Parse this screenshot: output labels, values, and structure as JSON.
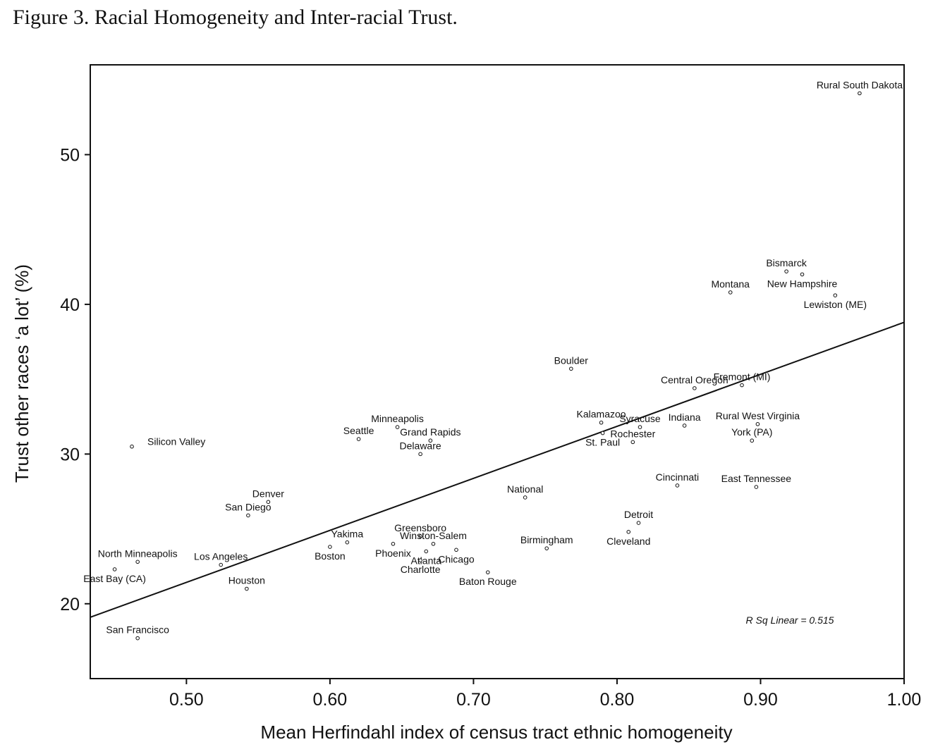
{
  "chart_data": {
    "type": "scatter",
    "title": "Figure 3.  Racial Homogeneity and Inter-racial Trust.",
    "xlabel": "Mean Herfindahl index of census tract ethnic homogeneity",
    "ylabel": "Trust other races ‘a lot’ (%)",
    "xlim": [
      0.433,
      1.0
    ],
    "ylim": [
      15.0,
      56.0
    ],
    "xticks": [
      0.5,
      0.6,
      0.7,
      0.8,
      0.9,
      1.0
    ],
    "xtick_labels": [
      "0.50",
      "0.60",
      "0.70",
      "0.80",
      "0.90",
      "1.00"
    ],
    "yticks": [
      20,
      30,
      40,
      50
    ],
    "ytick_labels": [
      "20",
      "30",
      "40",
      "50"
    ],
    "grid": false,
    "fit_line": {
      "type": "linear",
      "x0": 0.433,
      "y0": 19.1,
      "x1": 1.0,
      "y1": 38.8
    },
    "annotation": "R Sq Linear = 0.515",
    "points": [
      {
        "label": "Rural South Dakota",
        "x": 0.969,
        "y": 54.1,
        "pos": "above"
      },
      {
        "label": "Bismarck",
        "x": 0.918,
        "y": 42.2,
        "pos": "above"
      },
      {
        "label": "New Hampshire",
        "x": 0.929,
        "y": 42.0,
        "pos": "below"
      },
      {
        "label": "Montana",
        "x": 0.879,
        "y": 40.8,
        "pos": "above"
      },
      {
        "label": "Lewiston (ME)",
        "x": 0.952,
        "y": 40.6,
        "pos": "below"
      },
      {
        "label": "Boulder",
        "x": 0.768,
        "y": 35.7,
        "pos": "above"
      },
      {
        "label": "Fremont (MI)",
        "x": 0.887,
        "y": 34.6,
        "pos": "above"
      },
      {
        "label": "Central Oregon",
        "x": 0.854,
        "y": 34.4,
        "pos": "above"
      },
      {
        "label": "Kalamazoo",
        "x": 0.789,
        "y": 32.1,
        "pos": "above"
      },
      {
        "label": "Rural West Virginia",
        "x": 0.898,
        "y": 32.0,
        "pos": "above"
      },
      {
        "label": "Indiana",
        "x": 0.847,
        "y": 31.9,
        "pos": "above"
      },
      {
        "label": "Syracuse",
        "x": 0.816,
        "y": 31.8,
        "pos": "above"
      },
      {
        "label": "Minneapolis",
        "x": 0.647,
        "y": 31.8,
        "pos": "above"
      },
      {
        "label": "St. Paul",
        "x": 0.79,
        "y": 31.4,
        "pos": "below"
      },
      {
        "label": "Seattle",
        "x": 0.62,
        "y": 31.0,
        "pos": "above"
      },
      {
        "label": "York (PA)",
        "x": 0.894,
        "y": 30.9,
        "pos": "above"
      },
      {
        "label": "Grand Rapids",
        "x": 0.67,
        "y": 30.9,
        "pos": "above"
      },
      {
        "label": "Rochester",
        "x": 0.811,
        "y": 30.8,
        "pos": "above"
      },
      {
        "label": "Silicon Valley",
        "x": 0.462,
        "y": 30.5,
        "pos": "right"
      },
      {
        "label": "Delaware",
        "x": 0.663,
        "y": 30.0,
        "pos": "above"
      },
      {
        "label": "Cincinnati",
        "x": 0.842,
        "y": 27.9,
        "pos": "above"
      },
      {
        "label": "East Tennessee",
        "x": 0.897,
        "y": 27.8,
        "pos": "above"
      },
      {
        "label": "National",
        "x": 0.736,
        "y": 27.1,
        "pos": "above"
      },
      {
        "label": "Denver",
        "x": 0.557,
        "y": 26.8,
        "pos": "above"
      },
      {
        "label": "San Diego",
        "x": 0.543,
        "y": 25.9,
        "pos": "above"
      },
      {
        "label": "Detroit",
        "x": 0.815,
        "y": 25.4,
        "pos": "above"
      },
      {
        "label": "Cleveland",
        "x": 0.808,
        "y": 24.8,
        "pos": "below"
      },
      {
        "label": "Greensboro",
        "x": 0.663,
        "y": 24.5,
        "pos": "above"
      },
      {
        "label": "Yakima",
        "x": 0.612,
        "y": 24.1,
        "pos": "above"
      },
      {
        "label": "Phoenix",
        "x": 0.644,
        "y": 24.0,
        "pos": "below"
      },
      {
        "label": "Winston-Salem",
        "x": 0.672,
        "y": 24.0,
        "pos": "above"
      },
      {
        "label": "Boston",
        "x": 0.6,
        "y": 23.8,
        "pos": "below"
      },
      {
        "label": "Birmingham",
        "x": 0.751,
        "y": 23.7,
        "pos": "above"
      },
      {
        "label": "Chicago",
        "x": 0.688,
        "y": 23.6,
        "pos": "below"
      },
      {
        "label": "Atlanta",
        "x": 0.667,
        "y": 23.5,
        "pos": "below"
      },
      {
        "label": "Charlotte",
        "x": 0.663,
        "y": 22.9,
        "pos": "below"
      },
      {
        "label": "North Minneapolis",
        "x": 0.466,
        "y": 22.8,
        "pos": "above"
      },
      {
        "label": "Los Angeles",
        "x": 0.524,
        "y": 22.6,
        "pos": "above"
      },
      {
        "label": "East Bay (CA)",
        "x": 0.45,
        "y": 22.3,
        "pos": "below"
      },
      {
        "label": "Baton Rouge",
        "x": 0.71,
        "y": 22.1,
        "pos": "below"
      },
      {
        "label": "Houston",
        "x": 0.542,
        "y": 21.0,
        "pos": "above"
      },
      {
        "label": "San Francisco",
        "x": 0.466,
        "y": 17.7,
        "pos": "above"
      }
    ]
  }
}
